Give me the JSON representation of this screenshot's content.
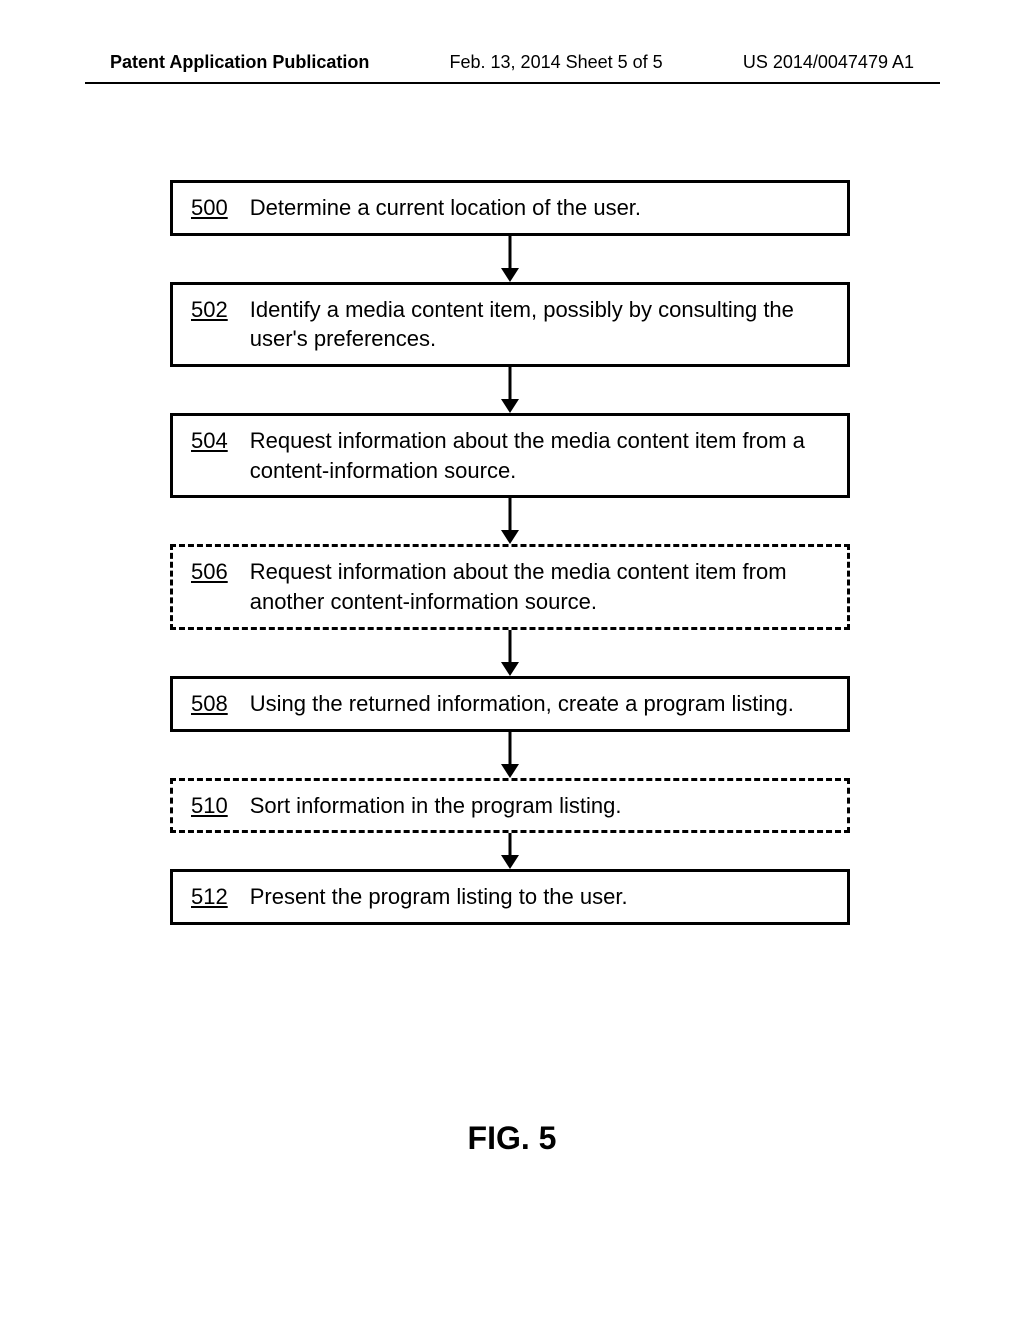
{
  "header": {
    "left": "Patent Application Publication",
    "mid": "Feb. 13, 2014  Sheet 5 of 5",
    "right": "US 2014/0047479 A1"
  },
  "figure_label": "FIG. 5",
  "flowchart": {
    "type": "flowchart",
    "box_border_width": 3,
    "box_font_size": 22,
    "arrow_length": 34,
    "colors": {
      "line": "#000000",
      "background": "#ffffff",
      "text": "#000000"
    },
    "steps": [
      {
        "ref": "500",
        "text": "Determine a current location of the user.",
        "style": "solid"
      },
      {
        "ref": "502",
        "text": "Identify a media content item, possibly by consulting the user's preferences.",
        "style": "solid"
      },
      {
        "ref": "504",
        "text": "Request information about the media content item from a content-information source.",
        "style": "solid"
      },
      {
        "ref": "506",
        "text": "Request information about the media content item from another content-information source.",
        "style": "dashed"
      },
      {
        "ref": "508",
        "text": "Using the returned information, create a program listing.",
        "style": "solid"
      },
      {
        "ref": "510",
        "text": "Sort information in the program listing.",
        "style": "dashed"
      },
      {
        "ref": "512",
        "text": "Present the program listing to the user.",
        "style": "solid"
      }
    ]
  }
}
